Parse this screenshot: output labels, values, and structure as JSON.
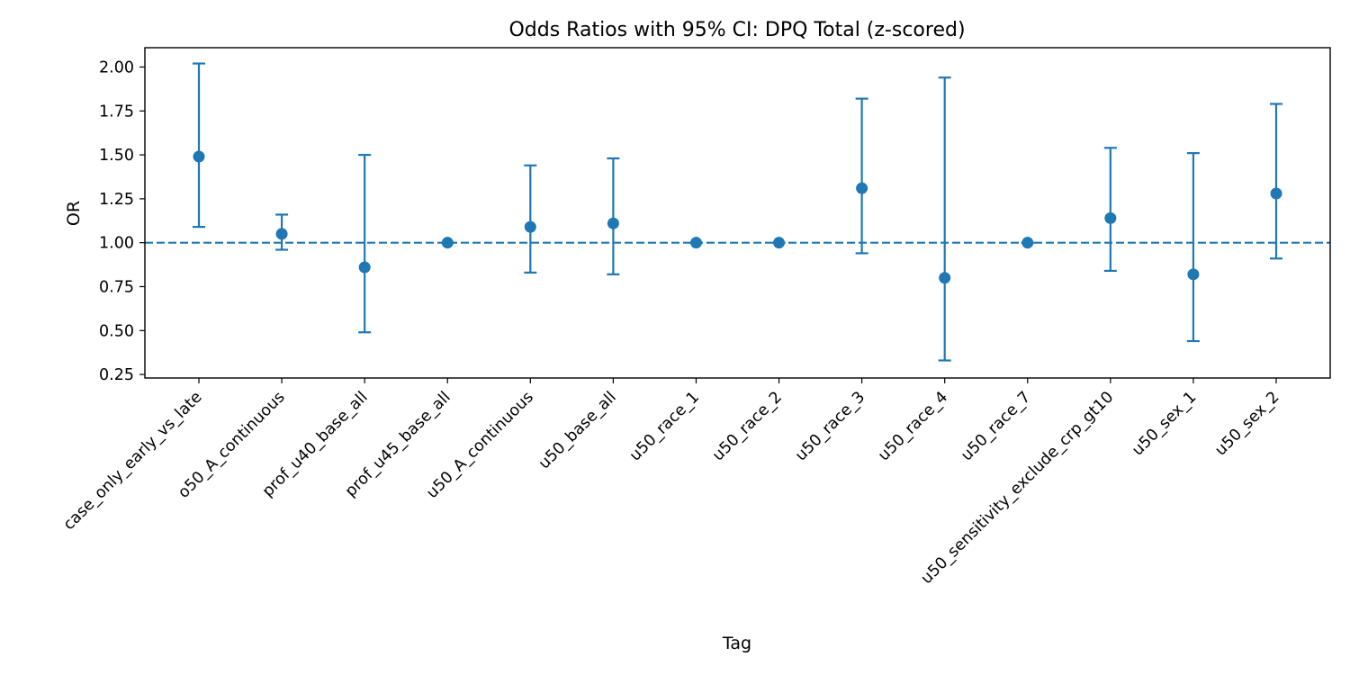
{
  "chart_data": {
    "type": "scatter",
    "title": "Odds Ratios with 95% CI: DPQ Total (z-scored)",
    "xlabel": "Tag",
    "ylabel": "OR",
    "ylim": [
      0.23,
      2.11
    ],
    "yticks": [
      "0.25",
      "0.50",
      "0.75",
      "1.00",
      "1.25",
      "1.50",
      "1.75",
      "2.00"
    ],
    "reference_line": {
      "y": 1.0,
      "style": "dashed"
    },
    "grid": false,
    "legend": "none",
    "color": "#1f77b4",
    "categories": [
      "case_only_early_vs_late",
      "o50_A_continuous",
      "prof_u40_base_all",
      "prof_u45_base_all",
      "u50_A_continuous",
      "u50_base_all",
      "u50_race_1",
      "u50_race_2",
      "u50_race_3",
      "u50_race_4",
      "u50_race_7",
      "u50_sensitivity_exclude_crp_gt10",
      "u50_sex_1",
      "u50_sex_2"
    ],
    "series": [
      {
        "or": [
          1.49,
          1.05,
          0.86,
          1.0,
          1.09,
          1.11,
          1.0,
          1.0,
          1.31,
          0.8,
          1.0,
          1.14,
          0.82,
          1.28
        ],
        "ci_lower": [
          1.09,
          0.96,
          0.49,
          1.0,
          0.83,
          0.82,
          1.0,
          1.0,
          0.94,
          0.33,
          1.0,
          0.84,
          0.44,
          0.91
        ],
        "ci_upper": [
          2.02,
          1.16,
          1.5,
          1.0,
          1.44,
          1.48,
          1.0,
          1.0,
          1.82,
          1.94,
          1.0,
          1.54,
          1.51,
          1.79
        ]
      }
    ]
  }
}
